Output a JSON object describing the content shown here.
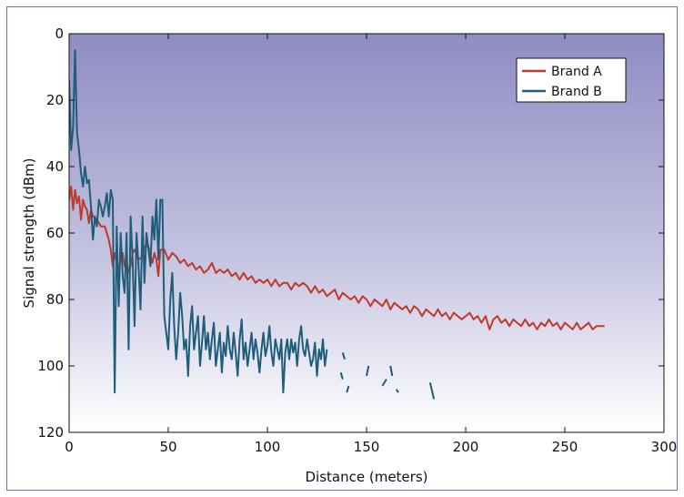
{
  "chart_data": {
    "type": "line",
    "title": "",
    "xlabel": "Distance (meters)",
    "ylabel": "Signal strength (dBm)",
    "xlim": [
      0,
      300
    ],
    "ylim": [
      0,
      120
    ],
    "y_axis_inverted": true,
    "x_ticks": [
      "0",
      "50",
      "100",
      "150",
      "200",
      "250",
      "300"
    ],
    "y_ticks": [
      "0",
      "20",
      "40",
      "60",
      "80",
      "100",
      "120"
    ],
    "grid": false,
    "legend_position": "top-right",
    "background": "vertical gradient from #8f8cc2 at top to #ffffff at bottom",
    "series": [
      {
        "name": "Brand A",
        "color": "#c0392b",
        "points": [
          [
            0,
            50
          ],
          [
            1,
            46
          ],
          [
            2,
            53
          ],
          [
            3,
            47
          ],
          [
            4,
            51
          ],
          [
            5,
            49
          ],
          [
            6,
            56
          ],
          [
            7,
            50
          ],
          [
            8,
            52
          ],
          [
            9,
            53
          ],
          [
            10,
            57
          ],
          [
            11,
            53
          ],
          [
            12,
            55
          ],
          [
            14,
            56
          ],
          [
            16,
            58
          ],
          [
            18,
            58
          ],
          [
            20,
            62
          ],
          [
            21,
            65
          ],
          [
            22,
            70
          ],
          [
            23,
            66
          ],
          [
            24,
            69
          ],
          [
            25,
            72
          ],
          [
            26,
            67
          ],
          [
            27,
            66
          ],
          [
            28,
            70
          ],
          [
            29,
            68
          ],
          [
            30,
            72
          ],
          [
            31,
            70
          ],
          [
            32,
            66
          ],
          [
            33,
            65
          ],
          [
            35,
            68
          ],
          [
            37,
            67
          ],
          [
            38,
            64
          ],
          [
            40,
            64
          ],
          [
            42,
            69
          ],
          [
            43,
            66
          ],
          [
            44,
            68
          ],
          [
            45,
            73
          ],
          [
            46,
            65
          ],
          [
            48,
            65
          ],
          [
            50,
            68
          ],
          [
            52,
            66
          ],
          [
            54,
            67
          ],
          [
            56,
            69
          ],
          [
            58,
            68
          ],
          [
            60,
            70
          ],
          [
            62,
            69
          ],
          [
            64,
            71
          ],
          [
            66,
            70
          ],
          [
            68,
            72
          ],
          [
            70,
            71
          ],
          [
            72,
            69
          ],
          [
            74,
            72
          ],
          [
            76,
            71
          ],
          [
            78,
            72
          ],
          [
            80,
            71
          ],
          [
            82,
            73
          ],
          [
            84,
            72
          ],
          [
            86,
            74
          ],
          [
            88,
            72
          ],
          [
            90,
            74
          ],
          [
            92,
            73
          ],
          [
            94,
            75
          ],
          [
            96,
            74
          ],
          [
            98,
            75
          ],
          [
            100,
            74
          ],
          [
            102,
            76
          ],
          [
            104,
            74
          ],
          [
            106,
            76
          ],
          [
            108,
            75
          ],
          [
            110,
            75
          ],
          [
            112,
            77
          ],
          [
            114,
            75
          ],
          [
            116,
            76
          ],
          [
            118,
            75
          ],
          [
            120,
            76
          ],
          [
            122,
            78
          ],
          [
            124,
            76
          ],
          [
            126,
            78
          ],
          [
            128,
            77
          ],
          [
            130,
            79
          ],
          [
            132,
            78
          ],
          [
            134,
            77
          ],
          [
            136,
            80
          ],
          [
            138,
            78
          ],
          [
            140,
            79
          ],
          [
            142,
            80
          ],
          [
            144,
            79
          ],
          [
            146,
            81
          ],
          [
            148,
            79
          ],
          [
            150,
            80
          ],
          [
            152,
            82
          ],
          [
            154,
            80
          ],
          [
            156,
            81
          ],
          [
            158,
            82
          ],
          [
            160,
            80
          ],
          [
            162,
            83
          ],
          [
            164,
            81
          ],
          [
            166,
            82
          ],
          [
            168,
            83
          ],
          [
            170,
            82
          ],
          [
            172,
            84
          ],
          [
            174,
            82
          ],
          [
            176,
            83
          ],
          [
            178,
            85
          ],
          [
            180,
            83
          ],
          [
            182,
            84
          ],
          [
            184,
            85
          ],
          [
            186,
            83
          ],
          [
            188,
            85
          ],
          [
            190,
            84
          ],
          [
            192,
            86
          ],
          [
            194,
            84
          ],
          [
            196,
            85
          ],
          [
            198,
            86
          ],
          [
            200,
            85
          ],
          [
            202,
            84
          ],
          [
            204,
            86
          ],
          [
            206,
            85
          ],
          [
            208,
            87
          ],
          [
            210,
            85
          ],
          [
            212,
            89
          ],
          [
            214,
            86
          ],
          [
            216,
            85
          ],
          [
            218,
            87
          ],
          [
            220,
            86
          ],
          [
            222,
            88
          ],
          [
            224,
            86
          ],
          [
            226,
            87
          ],
          [
            228,
            88
          ],
          [
            230,
            86
          ],
          [
            232,
            88
          ],
          [
            234,
            87
          ],
          [
            236,
            89
          ],
          [
            238,
            87
          ],
          [
            240,
            88
          ],
          [
            242,
            86
          ],
          [
            244,
            88
          ],
          [
            246,
            87
          ],
          [
            248,
            89
          ],
          [
            250,
            87
          ],
          [
            252,
            88
          ],
          [
            254,
            89
          ],
          [
            256,
            87
          ],
          [
            258,
            89
          ],
          [
            260,
            88
          ],
          [
            262,
            87
          ],
          [
            264,
            89
          ],
          [
            266,
            88
          ],
          [
            270,
            88
          ]
        ]
      },
      {
        "name": "Brand B",
        "color": "#1f5d7a",
        "points": [
          [
            0,
            14
          ],
          [
            1,
            35
          ],
          [
            2,
            28
          ],
          [
            3,
            5
          ],
          [
            4,
            30
          ],
          [
            5,
            35
          ],
          [
            6,
            42
          ],
          [
            7,
            46
          ],
          [
            8,
            40
          ],
          [
            9,
            45
          ],
          [
            10,
            44
          ],
          [
            11,
            52
          ],
          [
            12,
            62
          ],
          [
            13,
            55
          ],
          [
            14,
            58
          ],
          [
            15,
            50
          ],
          [
            16,
            52
          ],
          [
            17,
            55
          ],
          [
            18,
            52
          ],
          [
            19,
            48
          ],
          [
            20,
            55
          ],
          [
            21,
            47
          ],
          [
            22,
            50
          ],
          [
            23,
            108
          ],
          [
            24,
            58
          ],
          [
            25,
            82
          ],
          [
            26,
            60
          ],
          [
            27,
            73
          ],
          [
            28,
            78
          ],
          [
            29,
            60
          ],
          [
            30,
            95
          ],
          [
            31,
            55
          ],
          [
            32,
            68
          ],
          [
            33,
            88
          ],
          [
            34,
            60
          ],
          [
            35,
            70
          ],
          [
            36,
            83
          ],
          [
            37,
            55
          ],
          [
            38,
            75
          ],
          [
            39,
            60
          ],
          [
            40,
            65
          ],
          [
            41,
            70
          ],
          [
            42,
            55
          ],
          [
            43,
            62
          ],
          [
            44,
            50
          ],
          [
            45,
            68
          ],
          [
            46,
            50
          ],
          [
            47,
            50
          ],
          [
            48,
            85
          ],
          [
            49,
            90
          ],
          [
            50,
            95
          ],
          [
            51,
            80
          ],
          [
            52,
            72
          ],
          [
            53,
            88
          ],
          [
            54,
            98
          ],
          [
            55,
            90
          ],
          [
            56,
            78
          ],
          [
            57,
            85
          ],
          [
            58,
            95
          ],
          [
            59,
            92
          ],
          [
            60,
            103
          ],
          [
            61,
            88
          ],
          [
            62,
            82
          ],
          [
            63,
            95
          ],
          [
            64,
            90
          ],
          [
            65,
            85
          ],
          [
            66,
            100
          ],
          [
            67,
            93
          ],
          [
            68,
            85
          ],
          [
            69,
            95
          ],
          [
            70,
            90
          ],
          [
            71,
            98
          ],
          [
            72,
            92
          ],
          [
            73,
            87
          ],
          [
            74,
            100
          ],
          [
            75,
            95
          ],
          [
            76,
            90
          ],
          [
            77,
            102
          ],
          [
            78,
            93
          ],
          [
            79,
            97
          ],
          [
            80,
            88
          ],
          [
            81,
            95
          ],
          [
            82,
            98
          ],
          [
            83,
            90
          ],
          [
            84,
            96
          ],
          [
            85,
            103
          ],
          [
            86,
            92
          ],
          [
            87,
            86
          ],
          [
            88,
            98
          ],
          [
            89,
            93
          ],
          [
            90,
            100
          ],
          [
            91,
            95
          ],
          [
            92,
            90
          ],
          [
            93,
            98
          ],
          [
            94,
            92
          ],
          [
            95,
            96
          ],
          [
            96,
            102
          ],
          [
            97,
            95
          ],
          [
            98,
            90
          ],
          [
            99,
            97
          ],
          [
            100,
            94
          ],
          [
            101,
            88
          ],
          [
            102,
            96
          ],
          [
            103,
            100
          ],
          [
            104,
            92
          ],
          [
            105,
            95
          ],
          [
            106,
            98
          ],
          [
            107,
            92
          ],
          [
            108,
            108
          ],
          [
            109,
            96
          ],
          [
            110,
            92
          ],
          [
            111,
            98
          ],
          [
            112,
            92
          ],
          [
            113,
            96
          ],
          [
            114,
            93
          ],
          [
            115,
            100
          ],
          [
            116,
            92
          ],
          [
            117,
            88
          ],
          [
            118,
            95
          ],
          [
            119,
            97
          ],
          [
            120,
            92
          ],
          [
            121,
            96
          ],
          [
            122,
            100
          ],
          [
            123,
            98
          ],
          [
            124,
            93
          ],
          [
            125,
            103
          ],
          [
            126,
            95
          ],
          [
            127,
            98
          ],
          [
            128,
            92
          ],
          [
            129,
            100
          ],
          [
            130,
            95
          ]
        ],
        "fragments": [
          [
            [
              138,
              96
            ],
            [
              139,
              98
            ]
          ],
          [
            [
              137,
              102
            ],
            [
              138,
              104
            ]
          ],
          [
            [
              140,
              108
            ],
            [
              141,
              106
            ]
          ],
          [
            [
              150,
              103
            ],
            [
              151,
              100
            ]
          ],
          [
            [
              158,
              106
            ],
            [
              160,
              104
            ]
          ],
          [
            [
              162,
              100
            ],
            [
              163,
              103
            ]
          ],
          [
            [
              165,
              107
            ],
            [
              166,
              108
            ]
          ],
          [
            [
              182,
              105
            ],
            [
              184,
              110
            ]
          ]
        ]
      }
    ]
  }
}
